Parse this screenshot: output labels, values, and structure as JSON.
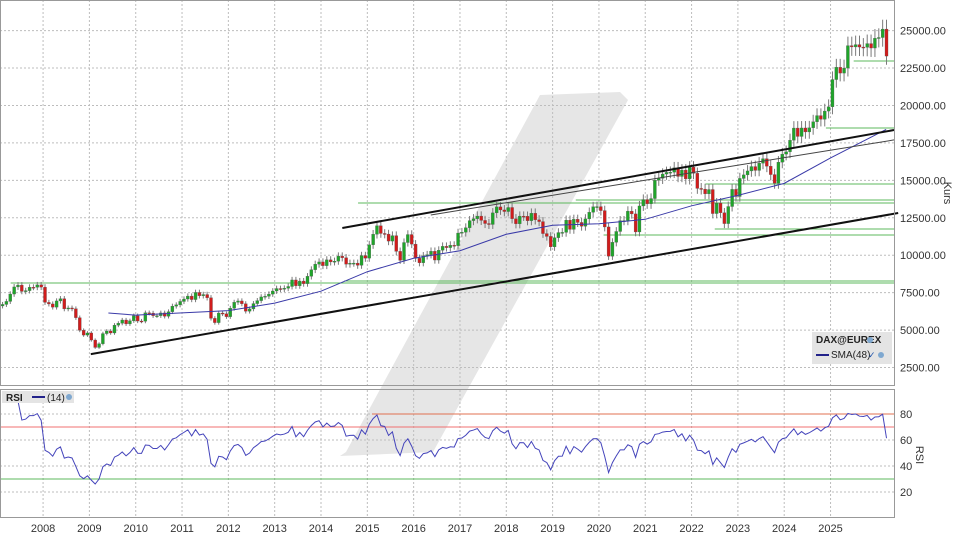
{
  "chart_data": [
    {
      "type": "candlestick",
      "instrument_label": "DAX@EUREX",
      "ylabel": "Kurs",
      "ylim": [
        0,
        27000
      ],
      "xlim": [
        2007.07,
        2026.37
      ],
      "y_ticks": [
        "2500.00",
        "5000.00",
        "7500.00",
        "10000.00",
        "12500.00",
        "15000.00",
        "17500.00",
        "20000.00",
        "22500.00",
        "25000.00"
      ],
      "x_ticks": [
        "2008",
        "2009",
        "2010",
        "2011",
        "2012",
        "2013",
        "2014",
        "2015",
        "2016",
        "2017",
        "2018",
        "2019",
        "2020",
        "2021",
        "2022",
        "2023",
        "2024",
        "2025"
      ],
      "grid": true,
      "start_month": "2007-02",
      "interval": "monthly",
      "closes": [
        6715,
        6917,
        7409,
        7883,
        8007,
        7584,
        7638,
        7862,
        7861,
        8019,
        7871,
        6851,
        6748,
        6535,
        6949,
        7097,
        6418,
        6479,
        6422,
        5831,
        4988,
        4669,
        4810,
        4338,
        3843,
        4085,
        4770,
        4941,
        4809,
        5332,
        5458,
        5675,
        5415,
        5625,
        5957,
        5608,
        5598,
        6154,
        6136,
        5964,
        5966,
        6148,
        5925,
        6229,
        6601,
        6688,
        6914,
        7077,
        7272,
        7041,
        7514,
        7294,
        7376,
        7159,
        5785,
        5502,
        6141,
        6089,
        5898,
        6458,
        6856,
        6947,
        6761,
        6264,
        6416,
        6772,
        6970,
        7216,
        7260,
        7405,
        7612,
        7776,
        7741,
        7795,
        7914,
        8349,
        7959,
        8276,
        8103,
        8594,
        9033,
        9405,
        9552,
        9306,
        9692,
        9556,
        9603,
        9943,
        9833,
        9407,
        9470,
        9474,
        9327,
        9980,
        9806,
        10694,
        11402,
        11966,
        11454,
        11413,
        10945,
        11309,
        10259,
        9660,
        10850,
        11382,
        10743,
        9798,
        9495,
        9965,
        10039,
        10263,
        9680,
        10337,
        10593,
        10511,
        10665,
        10640,
        11481,
        11535,
        11834,
        12313,
        12438,
        12615,
        12325,
        12118,
        12056,
        12829,
        13230,
        13024,
        12918,
        13189,
        12436,
        12097,
        12612,
        12605,
        12306,
        12806,
        12364,
        12247,
        11447,
        11257,
        10559,
        11173,
        11516,
        11526,
        12344,
        11727,
        12399,
        12189,
        11939,
        12428,
        12867,
        13236,
        13249,
        12982,
        11890,
        9936,
        10862,
        11587,
        12311,
        12313,
        12945,
        12761,
        11556,
        13291,
        13719,
        13433,
        13786,
        15008,
        15136,
        15421,
        15531,
        15544,
        15835,
        15261,
        15688,
        15100,
        15885,
        15471,
        14461,
        14415,
        14098,
        14388,
        12784,
        13484,
        12835,
        12114,
        13254,
        14397,
        13924,
        15128,
        15365,
        15629,
        15922,
        15664,
        16148,
        16447,
        15947,
        15387,
        14810,
        16215,
        16752,
        16904,
        17678,
        18492,
        17932,
        18498,
        18235,
        18509,
        18907,
        19325,
        19078,
        19626,
        19909,
        21732,
        22551,
        22163,
        22497,
        23997,
        23910,
        24065,
        23902,
        23881,
        24133,
        23837,
        24490,
        24539,
        25100,
        23300
      ],
      "series": [
        {
          "name": "SMA(48)",
          "color": "#3a3aa8",
          "points": [
            [
              2009.41,
              6140
            ],
            [
              2010,
              6000
            ],
            [
              2011,
              6150
            ],
            [
              2012,
              6300
            ],
            [
              2013,
              6800
            ],
            [
              2014,
              7600
            ],
            [
              2015,
              8900
            ],
            [
              2016,
              9800
            ],
            [
              2017,
              10300
            ],
            [
              2018,
              11400
            ],
            [
              2019,
              12000
            ],
            [
              2020,
              12100
            ],
            [
              2021,
              12400
            ],
            [
              2022,
              13300
            ],
            [
              2023,
              14000
            ],
            [
              2024,
              14800
            ],
            [
              2025,
              16500
            ],
            [
              2026.2,
              18400
            ]
          ]
        }
      ],
      "trendlines": [
        {
          "color": "#111111",
          "width": 2,
          "from": [
            2014.46,
            11820
          ],
          "to": [
            2026.37,
            18360
          ]
        },
        {
          "color": "#444444",
          "width": 1,
          "from": [
            2016.37,
            12690
          ],
          "to": [
            2026.37,
            17700
          ]
        },
        {
          "color": "#111111",
          "width": 2,
          "from": [
            2009.03,
            3400
          ],
          "to": [
            2026.46,
            12820
          ]
        }
      ],
      "horizontal_levels": [
        {
          "value": 8146,
          "from": 2007.3
        },
        {
          "value": 8280,
          "from": 2014.5
        },
        {
          "value": 11750,
          "from": 2022.5
        },
        {
          "value": 11350,
          "from": 2020.1
        },
        {
          "value": 13690,
          "from": 2019.5
        },
        {
          "value": 13490,
          "from": 2014.8
        },
        {
          "value": 14760,
          "from": 2022.3
        },
        {
          "value": 18500,
          "from": 2024.9
        },
        {
          "value": 22970,
          "from": 2025.5
        }
      ],
      "colors": {
        "up": "#1fa52a",
        "down": "#d11c1c",
        "level": "#5cb85c",
        "wick": "#7a7a7a"
      }
    },
    {
      "type": "line",
      "label": "RSI",
      "period_label": "(14)",
      "ylabel": "RSI",
      "ylim": [
        0,
        95
      ],
      "y_ticks": [
        "20",
        "40",
        "60",
        "80"
      ],
      "levels": [
        {
          "value": 80,
          "color": "#e07050",
          "from": 2015.1
        },
        {
          "value": 70,
          "color": "#f07070",
          "from": 2007.07
        },
        {
          "value": 30,
          "color": "#5cb85c",
          "from": 2007.07
        }
      ],
      "color": "#4444bb",
      "period": 14
    }
  ]
}
